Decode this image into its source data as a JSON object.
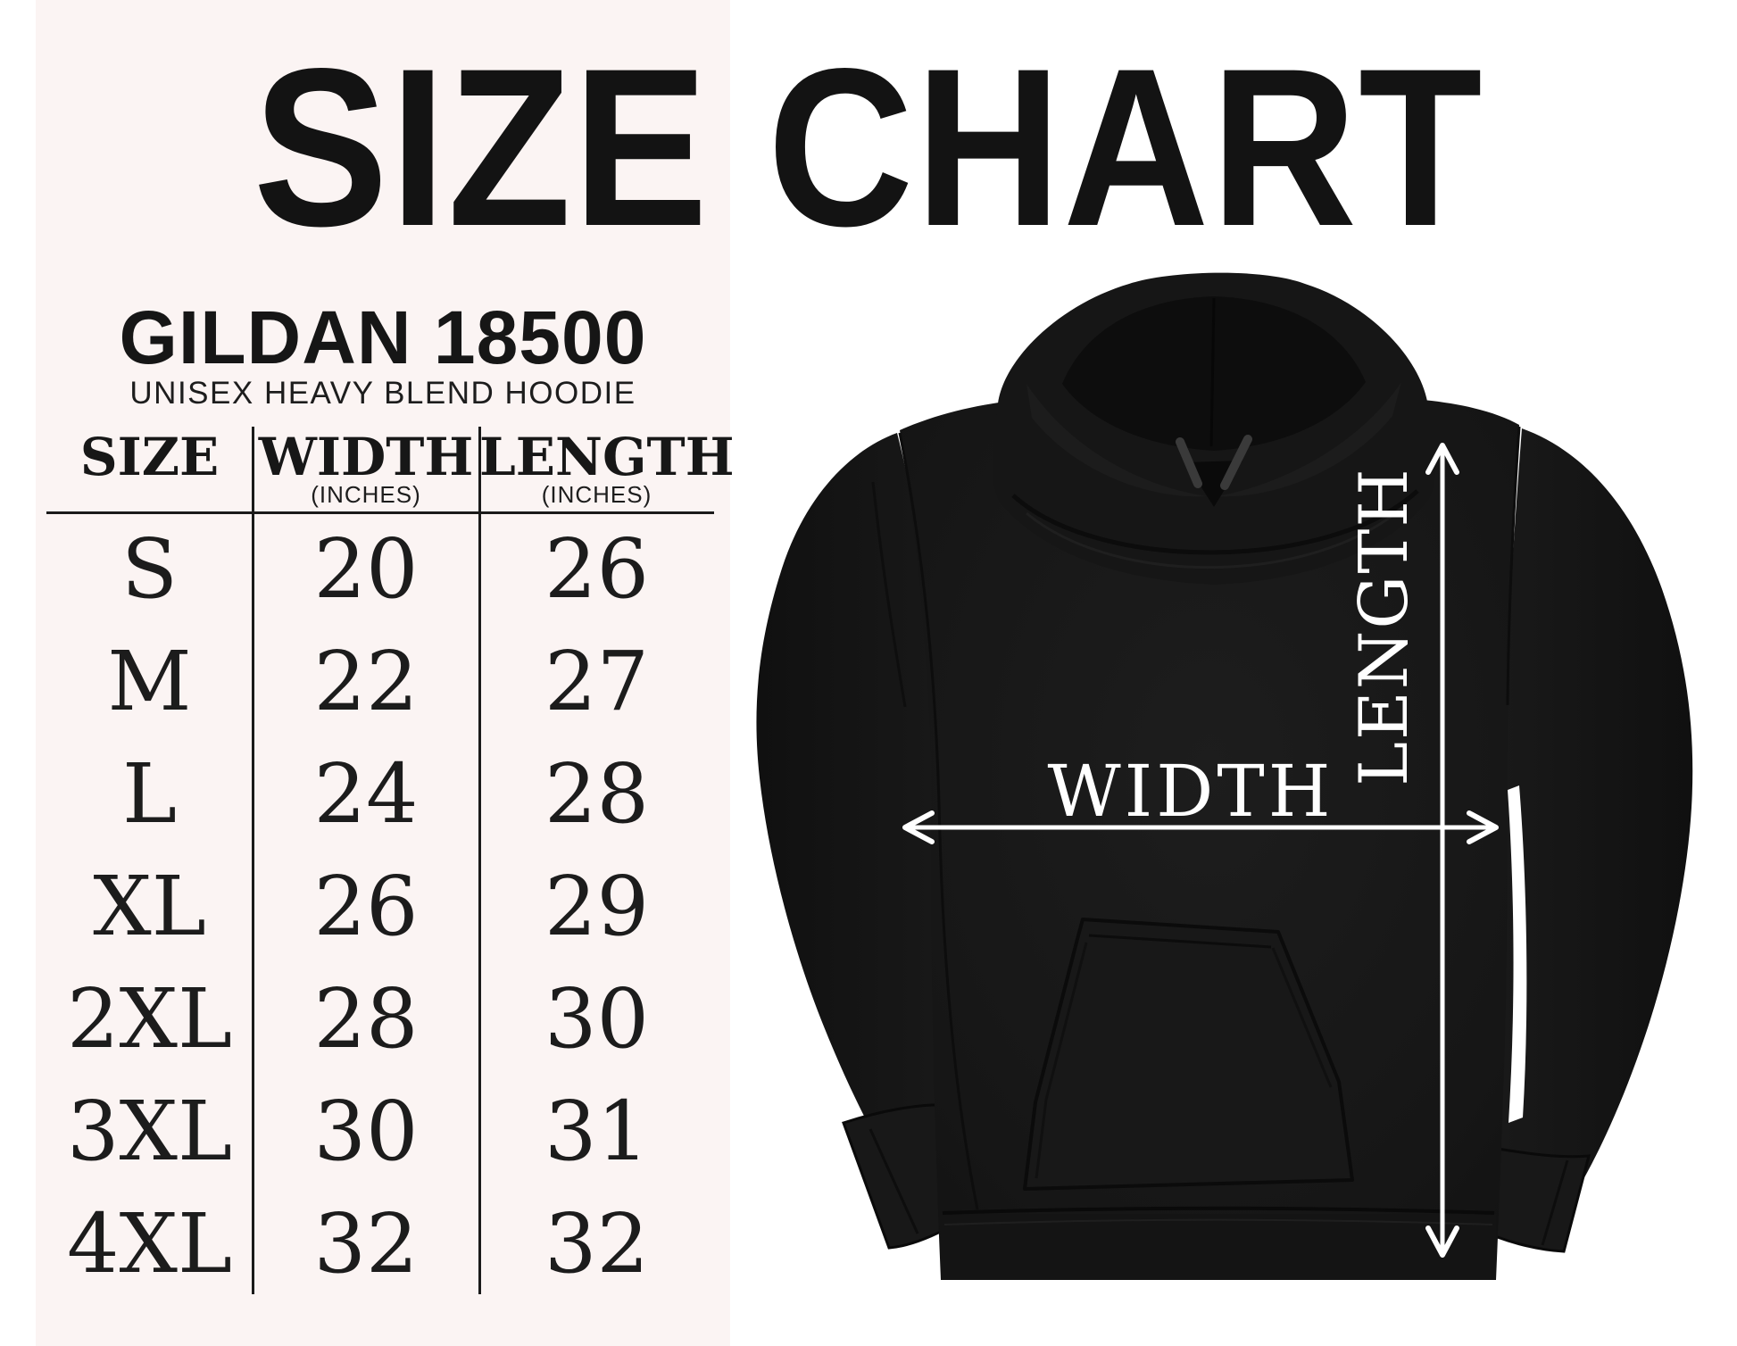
{
  "title": "SIZE CHART",
  "product": {
    "brand_model": "GILDAN 18500",
    "subtitle": "UNISEX HEAVY BLEND HOODIE"
  },
  "size_table": {
    "columns": [
      {
        "label": "SIZE",
        "unit": ""
      },
      {
        "label": "WIDTH",
        "unit": "(INCHES)"
      },
      {
        "label": "LENGTH",
        "unit": "(INCHES)"
      }
    ],
    "rows": [
      [
        "S",
        "20",
        "26"
      ],
      [
        "M",
        "22",
        "27"
      ],
      [
        "L",
        "24",
        "28"
      ],
      [
        "XL",
        "26",
        "29"
      ],
      [
        "2XL",
        "28",
        "30"
      ],
      [
        "3XL",
        "30",
        "31"
      ],
      [
        "4XL",
        "32",
        "32"
      ]
    ]
  },
  "diagram": {
    "width_label": "WIDTH",
    "length_label": "LENGTH"
  },
  "colors": {
    "background": "#ffffff",
    "panel_pink": "#fbf4f3",
    "ink_black": "#151515",
    "hoodie_black": "#161616",
    "annotation_white": "#ffffff"
  },
  "chart_data": {
    "type": "table",
    "title": "SIZE CHART",
    "subtitle": "GILDAN 18500 UNISEX HEAVY BLEND HOODIE",
    "columns": [
      "SIZE",
      "WIDTH (INCHES)",
      "LENGTH (INCHES)"
    ],
    "rows": [
      {
        "size": "S",
        "width_in": 20,
        "length_in": 26
      },
      {
        "size": "M",
        "width_in": 22,
        "length_in": 27
      },
      {
        "size": "L",
        "width_in": 24,
        "length_in": 28
      },
      {
        "size": "XL",
        "width_in": 26,
        "length_in": 29
      },
      {
        "size": "2XL",
        "width_in": 28,
        "length_in": 30
      },
      {
        "size": "3XL",
        "width_in": 30,
        "length_in": 31
      },
      {
        "size": "4XL",
        "width_in": 32,
        "length_in": 32
      }
    ],
    "annotations": [
      "WIDTH measured across chest with horizontal arrow",
      "LENGTH measured top to hem with vertical arrow"
    ]
  }
}
